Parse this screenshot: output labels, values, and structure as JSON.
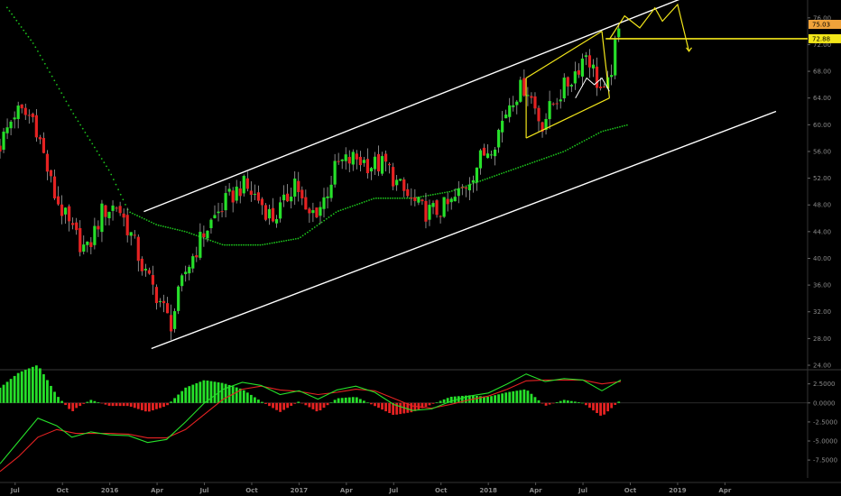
{
  "chart_data": [
    {
      "type": "candlestick",
      "title": "",
      "ylim": [
        24,
        78
      ],
      "y_ticks": [
        "24.00",
        "28.00",
        "32.00",
        "36.00",
        "40.00",
        "44.00",
        "48.00",
        "52.00",
        "56.00",
        "60.00",
        "64.00",
        "68.00",
        "72.00",
        "76.00"
      ],
      "x_ticks": [
        "Jul",
        "Oct",
        "2016",
        "Apr",
        "Jul",
        "Oct",
        "2017",
        "Apr",
        "Jul",
        "Oct",
        "2018",
        "Apr",
        "Jul",
        "Oct",
        "2019",
        "Apr"
      ],
      "price_path": [
        [
          2015.42,
          57
        ],
        [
          2015.5,
          62
        ],
        [
          2015.6,
          61
        ],
        [
          2015.7,
          50
        ],
        [
          2015.8,
          44
        ],
        [
          2015.88,
          41
        ],
        [
          2015.96,
          47
        ],
        [
          2016.04,
          48
        ],
        [
          2016.12,
          43
        ],
        [
          2016.18,
          38
        ],
        [
          2016.26,
          34
        ],
        [
          2016.32,
          30
        ],
        [
          2016.4,
          38
        ],
        [
          2016.5,
          44
        ],
        [
          2016.6,
          48
        ],
        [
          2016.7,
          51
        ],
        [
          2016.78,
          49
        ],
        [
          2016.86,
          46
        ],
        [
          2016.92,
          48
        ],
        [
          2016.98,
          52
        ],
        [
          2017.04,
          46
        ],
        [
          2017.12,
          48
        ],
        [
          2017.2,
          54
        ],
        [
          2017.3,
          55
        ],
        [
          2017.38,
          54
        ],
        [
          2017.46,
          54
        ],
        [
          2017.52,
          51
        ],
        [
          2017.58,
          49
        ],
        [
          2017.66,
          47
        ],
        [
          2017.72,
          47
        ],
        [
          2017.8,
          48
        ],
        [
          2017.88,
          51
        ],
        [
          2017.96,
          55
        ],
        [
          2018.04,
          58
        ],
        [
          2018.12,
          64
        ],
        [
          2018.2,
          66
        ],
        [
          2018.28,
          60
        ],
        [
          2018.36,
          64
        ],
        [
          2018.44,
          67
        ],
        [
          2018.52,
          71
        ],
        [
          2018.58,
          66
        ],
        [
          2018.62,
          64
        ],
        [
          2018.66,
          70
        ],
        [
          2018.7,
          75
        ]
      ],
      "last_price_badge": "75.03",
      "level_badge": "72.88",
      "level_value": 72.88,
      "sma_path": [
        [
          2015.42,
          79
        ],
        [
          2015.6,
          72
        ],
        [
          2015.8,
          62
        ],
        [
          2016.0,
          53
        ],
        [
          2016.1,
          47
        ],
        [
          2016.25,
          45
        ],
        [
          2016.4,
          44
        ],
        [
          2016.6,
          42
        ],
        [
          2016.8,
          42
        ],
        [
          2017.0,
          43
        ],
        [
          2017.2,
          47
        ],
        [
          2017.4,
          49
        ],
        [
          2017.6,
          49
        ],
        [
          2017.8,
          50
        ],
        [
          2018.0,
          52
        ],
        [
          2018.2,
          54
        ],
        [
          2018.4,
          56
        ],
        [
          2018.6,
          59
        ],
        [
          2018.74,
          60
        ]
      ],
      "channel_upper": [
        [
          2016.18,
          47
        ],
        [
          2019.03,
          79
        ]
      ],
      "channel_lower": [
        [
          2016.22,
          26.5
        ],
        [
          2019.52,
          62
        ]
      ],
      "flag_upper": [
        [
          2018.2,
          67
        ],
        [
          2018.6,
          74
        ]
      ],
      "flag_lower": [
        [
          2018.2,
          58
        ],
        [
          2018.64,
          64
        ]
      ],
      "projection_path": [
        [
          2018.64,
          72.8
        ],
        [
          2018.72,
          76.3
        ],
        [
          2018.8,
          74.5
        ],
        [
          2018.88,
          77.5
        ],
        [
          2018.92,
          75.5
        ],
        [
          2019.0,
          78
        ],
        [
          2019.06,
          71
        ]
      ],
      "colors": {
        "up": "#26e02a",
        "down": "#e52222",
        "sma": "#1cc21c",
        "channel": "#ffffff",
        "flag": "#f2e61a",
        "badge_last": "#f0a23a",
        "badge_level": "#f2e61a"
      }
    },
    {
      "type": "macd",
      "ylim": [
        -9.5,
        4
      ],
      "y_ticks": [
        "2.5000",
        "0.0000",
        "-2.5000",
        "-5.0000",
        "-7.5000"
      ],
      "macd_path": [
        [
          2015.42,
          -8
        ],
        [
          2015.52,
          -5
        ],
        [
          2015.62,
          -2
        ],
        [
          2015.72,
          -3
        ],
        [
          2015.8,
          -4.5
        ],
        [
          2015.9,
          -3.8
        ],
        [
          2016.0,
          -4.2
        ],
        [
          2016.1,
          -4.3
        ],
        [
          2016.2,
          -5.2
        ],
        [
          2016.3,
          -4.8
        ],
        [
          2016.4,
          -2.5
        ],
        [
          2016.5,
          0
        ],
        [
          2016.6,
          1.8
        ],
        [
          2016.7,
          2.7
        ],
        [
          2016.8,
          2.3
        ],
        [
          2016.9,
          1.1
        ],
        [
          2017.0,
          1.6
        ],
        [
          2017.1,
          0.5
        ],
        [
          2017.2,
          1.7
        ],
        [
          2017.3,
          2.2
        ],
        [
          2017.4,
          1.4
        ],
        [
          2017.5,
          -0.2
        ],
        [
          2017.6,
          -1.0
        ],
        [
          2017.7,
          -0.8
        ],
        [
          2017.8,
          0.2
        ],
        [
          2017.9,
          0.9
        ],
        [
          2018.0,
          1.3
        ],
        [
          2018.1,
          2.5
        ],
        [
          2018.2,
          3.8
        ],
        [
          2018.3,
          2.8
        ],
        [
          2018.4,
          3.2
        ],
        [
          2018.5,
          3.0
        ],
        [
          2018.6,
          1.6
        ],
        [
          2018.7,
          3.0
        ]
      ],
      "signal_path": [
        [
          2015.42,
          -9
        ],
        [
          2015.52,
          -7
        ],
        [
          2015.62,
          -4.5
        ],
        [
          2015.72,
          -3.5
        ],
        [
          2015.82,
          -4
        ],
        [
          2015.92,
          -4
        ],
        [
          2016.0,
          -4
        ],
        [
          2016.1,
          -4.1
        ],
        [
          2016.2,
          -4.6
        ],
        [
          2016.3,
          -4.6
        ],
        [
          2016.4,
          -3.5
        ],
        [
          2016.5,
          -1.5
        ],
        [
          2016.6,
          0.5
        ],
        [
          2016.7,
          1.8
        ],
        [
          2016.8,
          2.2
        ],
        [
          2016.9,
          1.7
        ],
        [
          2017.0,
          1.5
        ],
        [
          2017.1,
          1.1
        ],
        [
          2017.2,
          1.4
        ],
        [
          2017.3,
          1.8
        ],
        [
          2017.4,
          1.6
        ],
        [
          2017.5,
          0.6
        ],
        [
          2017.6,
          -0.4
        ],
        [
          2017.7,
          -0.7
        ],
        [
          2017.8,
          -0.2
        ],
        [
          2017.9,
          0.4
        ],
        [
          2018.0,
          0.9
        ],
        [
          2018.1,
          1.8
        ],
        [
          2018.2,
          2.9
        ],
        [
          2018.3,
          3.0
        ],
        [
          2018.4,
          3.0
        ],
        [
          2018.5,
          3.0
        ],
        [
          2018.6,
          2.5
        ],
        [
          2018.7,
          2.8
        ]
      ],
      "colors": {
        "macd": "#26e02a",
        "signal": "#e52222",
        "hist_up": "#26e02a",
        "hist_down": "#e52222"
      }
    }
  ]
}
